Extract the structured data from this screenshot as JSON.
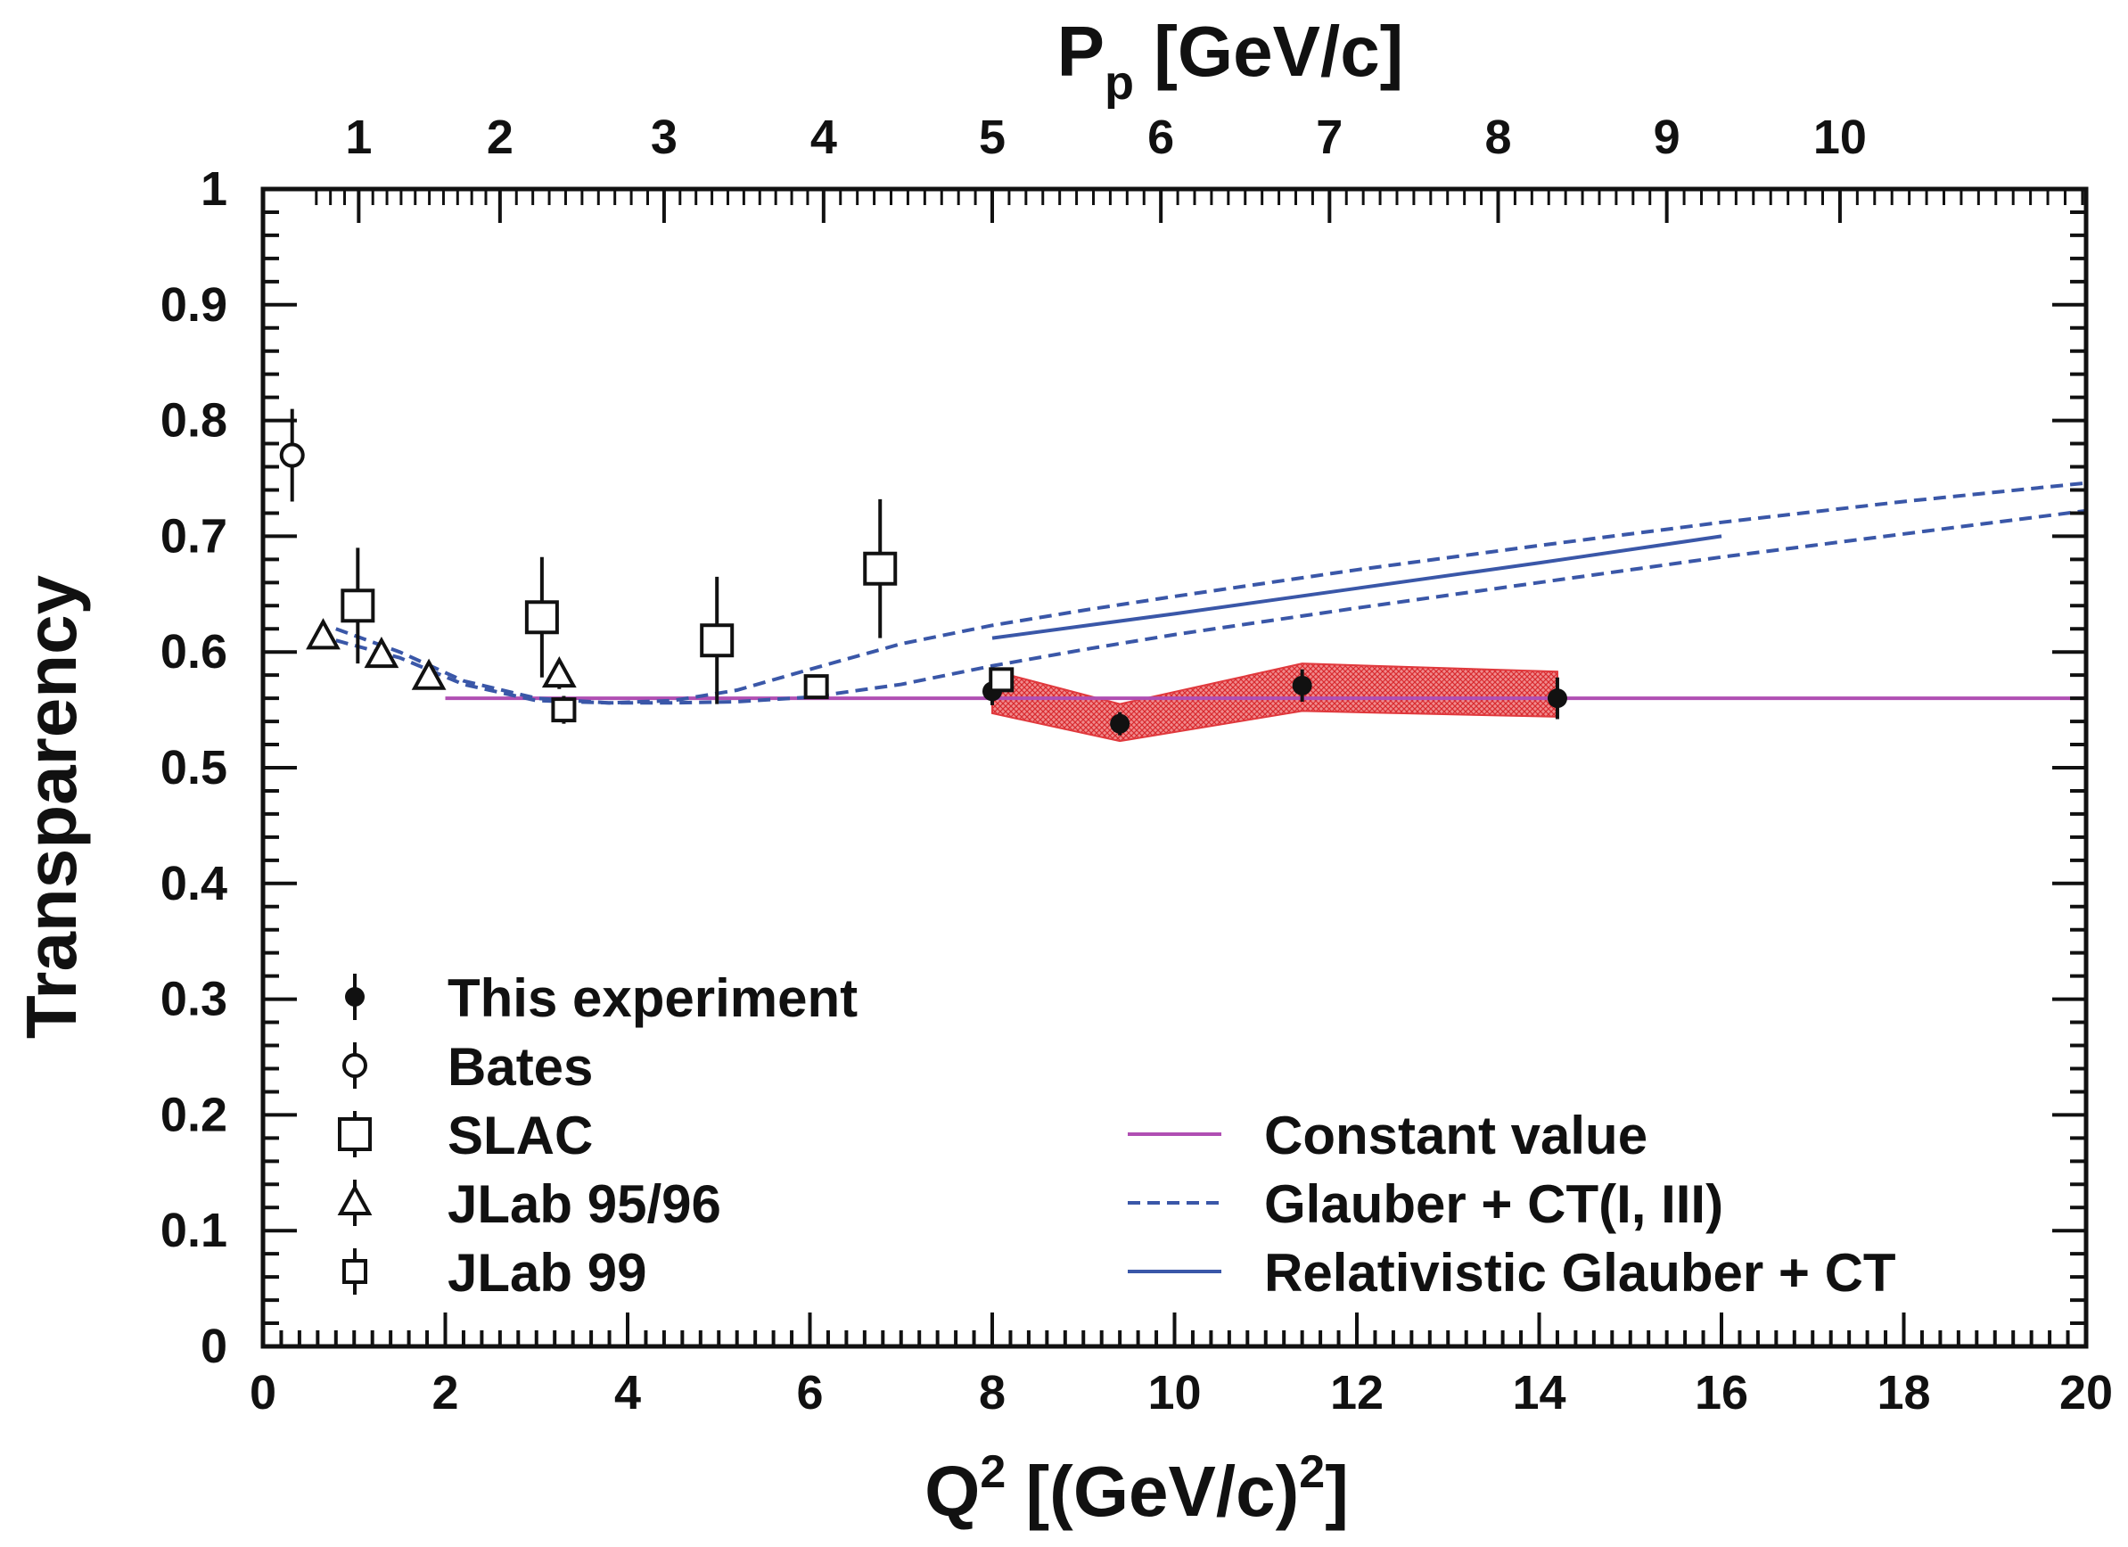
{
  "chart_data": {
    "type": "scatter",
    "xlabel": "Q² [(GeV/c)²]",
    "ylabel": "Transparency",
    "top_axis_label": "Pp [GeV/c]",
    "xlim": [
      0,
      20
    ],
    "ylim": [
      0,
      1
    ],
    "x_ticks": [
      "0",
      "2",
      "4",
      "6",
      "8",
      "10",
      "12",
      "14",
      "16",
      "18",
      "20"
    ],
    "y_ticks": [
      "0",
      "0.1",
      "0.2",
      "0.3",
      "0.4",
      "0.5",
      "0.6",
      "0.7",
      "0.8",
      "0.9",
      "1"
    ],
    "top_ticks": [
      {
        "label": "1",
        "q2": 1.05
      },
      {
        "label": "2",
        "q2": 2.6
      },
      {
        "label": "3",
        "q2": 4.4
      },
      {
        "label": "4",
        "q2": 6.15
      },
      {
        "label": "5",
        "q2": 8.0
      },
      {
        "label": "6",
        "q2": 9.85
      },
      {
        "label": "7",
        "q2": 11.7
      },
      {
        "label": "8",
        "q2": 13.55
      },
      {
        "label": "9",
        "q2": 15.4
      },
      {
        "label": "10",
        "q2": 17.3
      }
    ],
    "grid": false,
    "legend_left": [
      "This experiment",
      "Bates",
      "SLAC",
      "JLab 95/96",
      "JLab 99"
    ],
    "legend_right": [
      "Constant value",
      "Glauber + CT(I, III)",
      "Relativistic Glauber + CT"
    ],
    "series": [
      {
        "name": "This experiment",
        "marker": "filled-circle",
        "points": [
          {
            "x": 8.0,
            "y": 0.566,
            "err": 0.012
          },
          {
            "x": 9.4,
            "y": 0.538,
            "err": 0.01
          },
          {
            "x": 11.4,
            "y": 0.571,
            "err": 0.014
          },
          {
            "x": 14.2,
            "y": 0.56,
            "err": 0.018
          }
        ]
      },
      {
        "name": "Bates",
        "marker": "open-circle",
        "points": [
          {
            "x": 0.32,
            "y": 0.77,
            "err": 0.04
          }
        ]
      },
      {
        "name": "SLAC",
        "marker": "open-square-large",
        "points": [
          {
            "x": 1.04,
            "y": 0.64,
            "err": 0.05
          },
          {
            "x": 3.06,
            "y": 0.63,
            "err": 0.052
          },
          {
            "x": 4.98,
            "y": 0.61,
            "err": 0.055
          },
          {
            "x": 6.77,
            "y": 0.672,
            "err": 0.06
          }
        ]
      },
      {
        "name": "JLab 95/96",
        "marker": "open-triangle",
        "points": [
          {
            "x": 0.66,
            "y": 0.613,
            "err": 0.01
          },
          {
            "x": 1.3,
            "y": 0.597,
            "err": 0.01
          },
          {
            "x": 1.82,
            "y": 0.578,
            "err": 0.01
          },
          {
            "x": 3.25,
            "y": 0.58,
            "err": 0.012
          }
        ]
      },
      {
        "name": "JLab 99",
        "marker": "open-square-small",
        "points": [
          {
            "x": 3.3,
            "y": 0.55,
            "err": 0.012
          },
          {
            "x": 6.07,
            "y": 0.57,
            "err": 0.01
          },
          {
            "x": 8.1,
            "y": 0.576,
            "err": 0.01
          }
        ]
      },
      {
        "name": "Constant value",
        "type": "line",
        "style": "solid",
        "color": "#b04fb3",
        "x": [
          2,
          20
        ],
        "y": [
          0.56,
          0.56
        ]
      },
      {
        "name": "Glauber + CT(I, III)",
        "type": "line",
        "style": "dashed",
        "color": "#3a57a8",
        "curves": [
          {
            "x": [
              0.8,
              1.5,
              2.2,
              3.0,
              3.8,
              4.5,
              5.2,
              6,
              7,
              8,
              9,
              10,
              12,
              14,
              16,
              18,
              20
            ],
            "y": [
              0.62,
              0.6,
              0.575,
              0.56,
              0.556,
              0.558,
              0.567,
              0.585,
              0.607,
              0.623,
              0.636,
              0.648,
              0.671,
              0.692,
              0.712,
              0.73,
              0.746
            ]
          },
          {
            "x": [
              0.8,
              1.5,
              2.2,
              3.0,
              3.8,
              4.5,
              5.2,
              6,
              7,
              8,
              9,
              10,
              12,
              14,
              16,
              18,
              20
            ],
            "y": [
              0.61,
              0.595,
              0.572,
              0.558,
              0.556,
              0.556,
              0.557,
              0.561,
              0.572,
              0.588,
              0.602,
              0.615,
              0.638,
              0.66,
              0.682,
              0.702,
              0.722
            ]
          }
        ]
      },
      {
        "name": "Relativistic Glauber + CT",
        "type": "line",
        "style": "solid",
        "color": "#3a57a8",
        "x": [
          8,
          10,
          12,
          14,
          16
        ],
        "y": [
          0.612,
          0.633,
          0.655,
          0.677,
          0.7
        ]
      }
    ],
    "band": {
      "name": "This experiment systematic band",
      "color": "#e0393d",
      "x": [
        8.0,
        9.4,
        11.4,
        14.2
      ],
      "upper": [
        0.584,
        0.555,
        0.59,
        0.583
      ],
      "lower": [
        0.547,
        0.523,
        0.549,
        0.544
      ]
    },
    "colors": {
      "axis": "#111111",
      "band": "#e0393d",
      "constant": "#b04fb3",
      "glauber": "#3a57a8"
    }
  }
}
